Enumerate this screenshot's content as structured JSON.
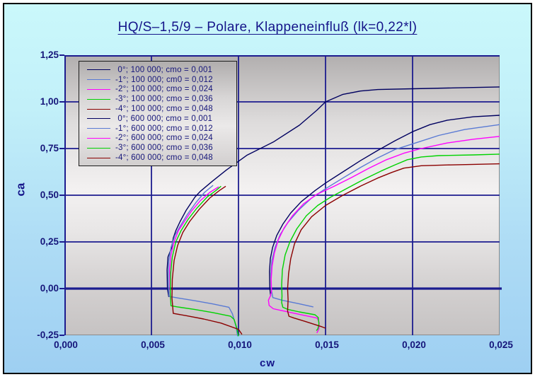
{
  "title": "HQ/S–1,5/9 – Polare, Klappeneinfluß (lk=0,22*l)",
  "colors": {
    "grid": "#1c1c8f",
    "axis_text": "#15157a",
    "title_text": "#15158a",
    "navy": "#000060",
    "blue": "#5a7ad4",
    "magenta": "#ff00ff",
    "green": "#00d300",
    "darkred": "#8b0000"
  },
  "chart_data": {
    "type": "line",
    "title": "HQ/S–1,5/9 – Polare, Klappeneinfluß (lk=0,22*l)",
    "xlabel": "cw",
    "ylabel": "ca",
    "xlim": [
      0,
      0.025
    ],
    "ylim": [
      -0.25,
      1.25
    ],
    "grid": true,
    "legend_position": "top-left",
    "x_ticks": {
      "values": [
        0,
        0.005,
        0.01,
        0.015,
        0.02,
        0.025
      ],
      "labels": [
        "0,000",
        "0,005",
        "0,010",
        "0,015",
        "0,020",
        "0,025"
      ]
    },
    "y_ticks": {
      "values": [
        1.25,
        1.0,
        0.75,
        0.5,
        0.25,
        0.0,
        -0.25
      ],
      "labels": [
        "1,25",
        "1,00",
        "0,75",
        "0,50",
        "0,25",
        "0,00",
        "-0,25"
      ]
    },
    "series": [
      {
        "name": "0deg-re100000",
        "label": " 0°; 100 000; cmo = 0,001",
        "color": "#000060",
        "points": [
          [
            0.01185,
            -0.04
          ],
          [
            0.0118,
            0
          ],
          [
            0.01178,
            0.09
          ],
          [
            0.01183,
            0.16
          ],
          [
            0.01196,
            0.22
          ],
          [
            0.0122,
            0.285
          ],
          [
            0.01255,
            0.345
          ],
          [
            0.013,
            0.405
          ],
          [
            0.0136,
            0.465
          ],
          [
            0.0144,
            0.525
          ],
          [
            0.015,
            0.565
          ],
          [
            0.016,
            0.625
          ],
          [
            0.017,
            0.685
          ],
          [
            0.018,
            0.74
          ],
          [
            0.019,
            0.792
          ],
          [
            0.02,
            0.84
          ],
          [
            0.021,
            0.878
          ],
          [
            0.022,
            0.902
          ],
          [
            0.0235,
            0.92
          ],
          [
            0.025,
            0.928
          ]
        ]
      },
      {
        "name": "-1deg-re100000",
        "label": "-1°; 100 000; cm0 = 0,012",
        "color": "#5a7ad4",
        "points": [
          [
            0.0143,
            -0.098
          ],
          [
            0.0135,
            -0.082
          ],
          [
            0.0125,
            -0.062
          ],
          [
            0.01197,
            -0.048
          ],
          [
            0.01188,
            0
          ],
          [
            0.01186,
            0.08
          ],
          [
            0.01192,
            0.15
          ],
          [
            0.0121,
            0.22
          ],
          [
            0.0124,
            0.29
          ],
          [
            0.01285,
            0.355
          ],
          [
            0.01345,
            0.42
          ],
          [
            0.0142,
            0.485
          ],
          [
            0.015,
            0.535
          ],
          [
            0.016,
            0.592
          ],
          [
            0.017,
            0.648
          ],
          [
            0.018,
            0.7
          ],
          [
            0.019,
            0.745
          ],
          [
            0.02,
            0.775
          ],
          [
            0.0215,
            0.82
          ],
          [
            0.023,
            0.852
          ],
          [
            0.025,
            0.878
          ]
        ]
      },
      {
        "name": "-2deg-re100000",
        "label": "-2°; 100 000; cmo = 0,024",
        "color": "#ff00ff",
        "points": [
          [
            0.0145,
            -0.238
          ],
          [
            0.01462,
            -0.215
          ],
          [
            0.01463,
            -0.18
          ],
          [
            0.01452,
            -0.158
          ],
          [
            0.0135,
            -0.138
          ],
          [
            0.0125,
            -0.118
          ],
          [
            0.012,
            -0.108
          ],
          [
            0.01176,
            -0.09
          ],
          [
            0.01172,
            -0.062
          ],
          [
            0.01183,
            -0.04
          ],
          [
            0.0119,
            -0.015
          ],
          [
            0.01188,
            0.05
          ],
          [
            0.01193,
            0.12
          ],
          [
            0.01206,
            0.19
          ],
          [
            0.01228,
            0.26
          ],
          [
            0.01262,
            0.325
          ],
          [
            0.0131,
            0.39
          ],
          [
            0.01375,
            0.455
          ],
          [
            0.0145,
            0.505
          ],
          [
            0.0155,
            0.548
          ],
          [
            0.0165,
            0.595
          ],
          [
            0.0175,
            0.645
          ],
          [
            0.0185,
            0.69
          ],
          [
            0.0195,
            0.725
          ],
          [
            0.0205,
            0.75
          ],
          [
            0.022,
            0.78
          ],
          [
            0.0235,
            0.8
          ],
          [
            0.025,
            0.815
          ]
        ]
      },
      {
        "name": "-3deg-re100000",
        "label": "-3°; 100 000; cmo = 0,036",
        "color": "#00d300",
        "points": [
          [
            0.01447,
            -0.225
          ],
          [
            0.01456,
            -0.215
          ],
          [
            0.01462,
            -0.19
          ],
          [
            0.01458,
            -0.155
          ],
          [
            0.0144,
            -0.14
          ],
          [
            0.0135,
            -0.125
          ],
          [
            0.01285,
            -0.112
          ],
          [
            0.01255,
            -0.1
          ],
          [
            0.01248,
            -0.075
          ],
          [
            0.0125,
            -0.04
          ],
          [
            0.01248,
            0.02
          ],
          [
            0.01252,
            0.1
          ],
          [
            0.01268,
            0.18
          ],
          [
            0.01295,
            0.25
          ],
          [
            0.01335,
            0.32
          ],
          [
            0.0139,
            0.39
          ],
          [
            0.01455,
            0.445
          ],
          [
            0.0153,
            0.49
          ],
          [
            0.0162,
            0.535
          ],
          [
            0.0172,
            0.585
          ],
          [
            0.0182,
            0.63
          ],
          [
            0.019,
            0.663
          ],
          [
            0.0197,
            0.69
          ],
          [
            0.0205,
            0.705
          ],
          [
            0.0215,
            0.712
          ],
          [
            0.0235,
            0.716
          ],
          [
            0.025,
            0.72
          ]
        ]
      },
      {
        "name": "-4deg-re100000",
        "label": "-4°; 100 000; cmo = 0,048",
        "color": "#8b0000",
        "points": [
          [
            0.015,
            -0.212
          ],
          [
            0.0148,
            -0.205
          ],
          [
            0.0138,
            -0.175
          ],
          [
            0.0132,
            -0.158
          ],
          [
            0.0129,
            -0.148
          ],
          [
            0.01282,
            -0.12
          ],
          [
            0.01285,
            -0.06
          ],
          [
            0.01282,
            0
          ],
          [
            0.01288,
            0.08
          ],
          [
            0.013,
            0.16
          ],
          [
            0.01322,
            0.24
          ],
          [
            0.0136,
            0.315
          ],
          [
            0.0142,
            0.385
          ],
          [
            0.015,
            0.445
          ],
          [
            0.016,
            0.5
          ],
          [
            0.017,
            0.548
          ],
          [
            0.018,
            0.592
          ],
          [
            0.0188,
            0.622
          ],
          [
            0.0195,
            0.645
          ],
          [
            0.0205,
            0.658
          ],
          [
            0.022,
            0.662
          ],
          [
            0.0235,
            0.665
          ],
          [
            0.025,
            0.668
          ]
        ]
      },
      {
        "name": "0deg-re600000",
        "label": " 0°; 600 000; cmo = 0,001",
        "color": "#000060",
        "points": [
          [
            0.006,
            -0.045
          ],
          [
            0.00592,
            0
          ],
          [
            0.0059,
            0.1
          ],
          [
            0.00595,
            0.17
          ],
          [
            0.00615,
            0.215
          ],
          [
            0.00625,
            0.27
          ],
          [
            0.0064,
            0.31
          ],
          [
            0.00665,
            0.36
          ],
          [
            0.007,
            0.42
          ],
          [
            0.0075,
            0.49
          ],
          [
            0.0078,
            0.52
          ],
          [
            0.0085,
            0.575
          ],
          [
            0.0093,
            0.635
          ],
          [
            0.0105,
            0.715
          ],
          [
            0.012,
            0.785
          ],
          [
            0.0135,
            0.875
          ],
          [
            0.0145,
            0.955
          ],
          [
            0.015,
            1.0
          ],
          [
            0.016,
            1.04
          ],
          [
            0.017,
            1.058
          ],
          [
            0.018,
            1.066
          ],
          [
            0.02,
            1.07
          ],
          [
            0.0225,
            1.075
          ],
          [
            0.025,
            1.08
          ]
        ]
      },
      {
        "name": "-1deg-re600000",
        "label": "-1°; 600 000; cmo = 0,012",
        "color": "#5a7ad4",
        "points": [
          [
            0.00995,
            -0.255
          ],
          [
            0.00985,
            -0.2
          ],
          [
            0.00965,
            -0.135
          ],
          [
            0.00945,
            -0.1
          ],
          [
            0.0085,
            -0.082
          ],
          [
            0.0075,
            -0.065
          ],
          [
            0.0065,
            -0.05
          ],
          [
            0.00602,
            -0.042
          ],
          [
            0.00598,
            0
          ],
          [
            0.00597,
            0.08
          ],
          [
            0.006,
            0.15
          ],
          [
            0.00612,
            0.22
          ],
          [
            0.00635,
            0.285
          ],
          [
            0.00665,
            0.335
          ],
          [
            0.00705,
            0.395
          ],
          [
            0.00755,
            0.46
          ],
          [
            0.00805,
            0.515
          ],
          [
            0.00854,
            0.553
          ]
        ]
      },
      {
        "name": "-2deg-re600000",
        "label": "-2°; 600 000; cmo = 0,024",
        "color": "#ff00ff",
        "points": [
          [
            0.0061,
            -0.06
          ],
          [
            0.00606,
            0
          ],
          [
            0.00605,
            0.1
          ],
          [
            0.00612,
            0.18
          ],
          [
            0.0063,
            0.25
          ],
          [
            0.00655,
            0.31
          ],
          [
            0.0069,
            0.36
          ],
          [
            0.0073,
            0.415
          ],
          [
            0.0078,
            0.47
          ],
          [
            0.00835,
            0.515
          ],
          [
            0.00886,
            0.545
          ]
        ]
      },
      {
        "name": "-3deg-re600000",
        "label": "-3°; 600 000; cmo = 0,036",
        "color": "#00d300",
        "points": [
          [
            0.01,
            -0.255
          ],
          [
            0.0099,
            -0.21
          ],
          [
            0.00975,
            -0.165
          ],
          [
            0.00955,
            -0.148
          ],
          [
            0.0085,
            -0.128
          ],
          [
            0.0075,
            -0.112
          ],
          [
            0.0065,
            -0.098
          ],
          [
            0.00612,
            -0.092
          ],
          [
            0.00608,
            -0.02
          ],
          [
            0.0061,
            0.08
          ],
          [
            0.0062,
            0.17
          ],
          [
            0.0064,
            0.25
          ],
          [
            0.0067,
            0.31
          ],
          [
            0.0071,
            0.37
          ],
          [
            0.0076,
            0.43
          ],
          [
            0.0082,
            0.49
          ],
          [
            0.0087,
            0.525
          ],
          [
            0.009,
            0.548
          ]
        ]
      },
      {
        "name": "-4deg-re600000",
        "label": "-4°; 600 000; cmo = 0,048",
        "color": "#8b0000",
        "points": [
          [
            0.0102,
            -0.245
          ],
          [
            0.01,
            -0.218
          ],
          [
            0.009,
            -0.185
          ],
          [
            0.008,
            -0.163
          ],
          [
            0.007,
            -0.145
          ],
          [
            0.00625,
            -0.133
          ],
          [
            0.00618,
            -0.05
          ],
          [
            0.0062,
            0.05
          ],
          [
            0.0063,
            0.15
          ],
          [
            0.0065,
            0.23
          ],
          [
            0.0068,
            0.3
          ],
          [
            0.0072,
            0.36
          ],
          [
            0.00775,
            0.425
          ],
          [
            0.00835,
            0.485
          ],
          [
            0.0089,
            0.525
          ],
          [
            0.00927,
            0.548
          ]
        ]
      }
    ]
  }
}
